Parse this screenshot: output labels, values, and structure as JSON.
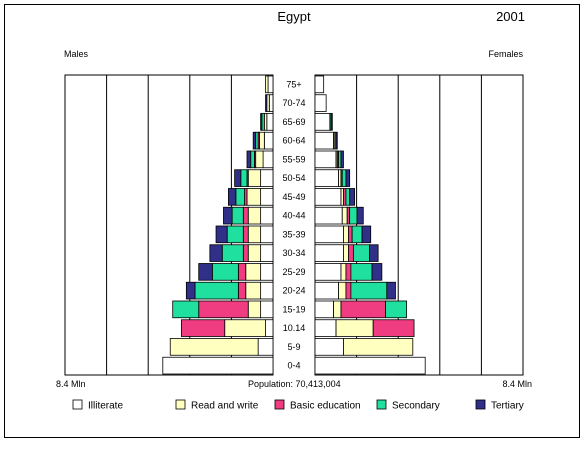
{
  "chart_data": {
    "type": "bar",
    "subtype": "population-pyramid-stacked",
    "title": "Egypt",
    "year": "2001",
    "left_label": "Males",
    "right_label": "Females",
    "axis_max_label": "8.4 Mln",
    "axis_max": 8.4,
    "population_label": "Population: 70,413,004",
    "categories": [
      "0-4",
      "5-9",
      "10.14",
      "15-19",
      "20-24",
      "25-29",
      "30-34",
      "35-39",
      "40-44",
      "45-49",
      "50-54",
      "55-59",
      "60-64",
      "65-69",
      "70-74",
      "75+"
    ],
    "series_names": [
      "Illiterate",
      "Read and write",
      "Basic education",
      "Secondary",
      "Tertiary"
    ],
    "colors": {
      "Illiterate": "#ffffff",
      "Read and write": "#ffffc0",
      "Basic education": "#f03c80",
      "Secondary": "#20e0a0",
      "Tertiary": "#303088"
    },
    "males": {
      "Illiterate": [
        4.45,
        0.6,
        0.3,
        0.5,
        0.5,
        0.5,
        0.5,
        0.5,
        0.5,
        0.5,
        0.5,
        0.4,
        0.35,
        0.25,
        0.15,
        0.2
      ],
      "Read and write": [
        0.0,
        3.55,
        1.65,
        0.5,
        0.6,
        0.6,
        0.5,
        0.5,
        0.5,
        0.55,
        0.5,
        0.3,
        0.2,
        0.1,
        0.1,
        0.1
      ],
      "Basic education": [
        0.0,
        0.0,
        1.75,
        2.0,
        0.3,
        0.3,
        0.2,
        0.2,
        0.2,
        0.1,
        0.05,
        0.05,
        0.05,
        0.0,
        0.0,
        0.0
      ],
      "Secondary": [
        0.0,
        0.0,
        0.0,
        1.05,
        1.75,
        1.05,
        0.85,
        0.65,
        0.45,
        0.35,
        0.25,
        0.15,
        0.1,
        0.1,
        0.0,
        0.0
      ],
      "Tertiary": [
        0.0,
        0.0,
        0.0,
        0.0,
        0.35,
        0.55,
        0.5,
        0.45,
        0.35,
        0.3,
        0.25,
        0.15,
        0.1,
        0.05,
        0.05,
        0.0
      ]
    },
    "females": {
      "Illiterate": [
        4.45,
        1.15,
        0.85,
        0.75,
        0.95,
        1.05,
        1.15,
        1.15,
        1.1,
        1.05,
        0.95,
        0.85,
        0.75,
        0.6,
        0.45,
        0.35
      ],
      "Read and write": [
        0.0,
        2.8,
        1.5,
        0.3,
        0.3,
        0.2,
        0.2,
        0.2,
        0.2,
        0.1,
        0.1,
        0.05,
        0.05,
        0.0,
        0.0,
        0.0
      ],
      "Basic education": [
        0.0,
        0.0,
        1.65,
        1.8,
        0.2,
        0.2,
        0.2,
        0.15,
        0.1,
        0.1,
        0.05,
        0.05,
        0.0,
        0.0,
        0.0,
        0.0
      ],
      "Secondary": [
        0.0,
        0.0,
        0.0,
        0.85,
        1.45,
        0.85,
        0.65,
        0.4,
        0.3,
        0.15,
        0.15,
        0.1,
        0.05,
        0.05,
        0.0,
        0.0
      ],
      "Tertiary": [
        0.0,
        0.0,
        0.0,
        0.0,
        0.35,
        0.4,
        0.35,
        0.35,
        0.25,
        0.2,
        0.15,
        0.1,
        0.05,
        0.05,
        0.0,
        0.0
      ]
    },
    "legend_position": "bottom",
    "grid": true
  }
}
